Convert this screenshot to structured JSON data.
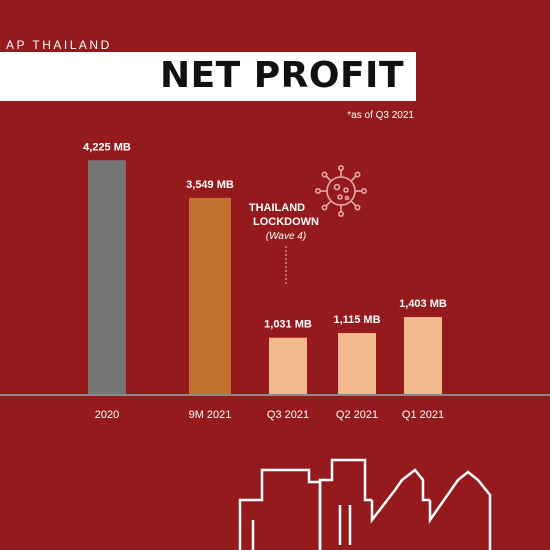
{
  "header": {
    "brand": "AP THAILAND",
    "title": "NET PROFIT",
    "note": "*as of Q3 2021"
  },
  "annotation": {
    "line1": "THAILAND",
    "line2": "LOCKDOWN",
    "line3": "(Wave 4)",
    "icon": "virus-icon"
  },
  "colors": {
    "background": "#951a1e",
    "bar_2020": "#757575",
    "bar_9m2021": "#c17130",
    "bar_quarters": "#f2b88e",
    "baseline": "#8a8a8a"
  },
  "chart_data": {
    "type": "bar",
    "title": "NET PROFIT",
    "xlabel": "",
    "ylabel": "",
    "ylim": [
      0,
      4500
    ],
    "grid": false,
    "categories": [
      "2020",
      "9M 2021",
      "Q3 2021",
      "Q2 2021",
      "Q1 2021"
    ],
    "values": [
      4225,
      3549,
      1031,
      1115,
      1403
    ],
    "data_labels": [
      "4,225 MB",
      "3,549 MB",
      "1,031 MB",
      "1,115 MB",
      "1,403 MB"
    ],
    "colors": [
      "#757575",
      "#c17130",
      "#f2b88e",
      "#f2b88e",
      "#f2b88e"
    ]
  }
}
